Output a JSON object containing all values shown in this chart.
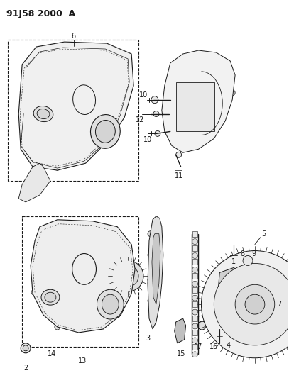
{
  "title": "91J58 2000  A",
  "bg_color": "#ffffff",
  "line_color": "#1a1a1a",
  "figsize": [
    4.07,
    5.33
  ],
  "dpi": 100
}
